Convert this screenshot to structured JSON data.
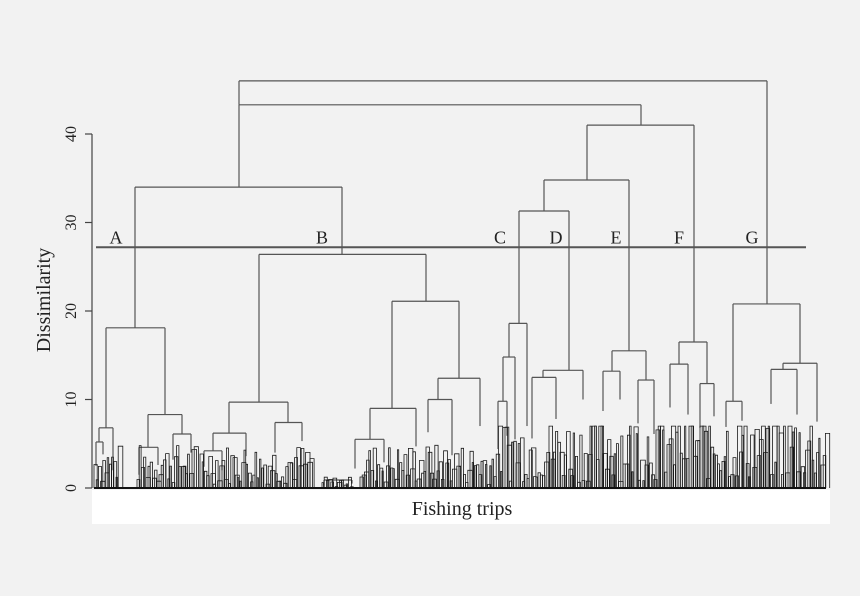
{
  "chart_data": {
    "type": "dendrogram",
    "title": "",
    "xlabel": "Fishing trips",
    "ylabel": "Dissimilarity",
    "ylim": [
      0,
      46
    ],
    "yticks": [
      0,
      10,
      20,
      30,
      40
    ],
    "cut_height": 27.2,
    "cluster_labels": [
      "A",
      "B",
      "C",
      "D",
      "E",
      "F",
      "G"
    ],
    "merges": [
      {
        "id": "root",
        "height": 46.0,
        "children": [
          "AB",
          "CDEFG_part"
        ]
      },
      {
        "id": "AB_plus",
        "height": 43.3
      },
      {
        "id": "AB",
        "height": 34.0,
        "children": [
          "A",
          "B"
        ]
      },
      {
        "id": "DEFG",
        "height": 41.0
      },
      {
        "id": "CDE",
        "height": 34.8
      },
      {
        "id": "CD",
        "height": 31.3,
        "children": [
          "C",
          "D"
        ]
      },
      {
        "id": "B",
        "height": 26.4
      },
      {
        "id": "G",
        "height": 20.8
      },
      {
        "id": "A",
        "height": 18.1
      },
      {
        "id": "C",
        "height": 18.6
      },
      {
        "id": "E",
        "height": 15.5
      },
      {
        "id": "F",
        "height": 16.5
      },
      {
        "id": "D",
        "height": 13.3
      }
    ],
    "grid": false,
    "legend": "none"
  },
  "colors": {
    "line": "#555555",
    "dense_leaves": "#1a1a1a",
    "background": "#f2f2f2",
    "plot_strip": "#ffffff"
  }
}
